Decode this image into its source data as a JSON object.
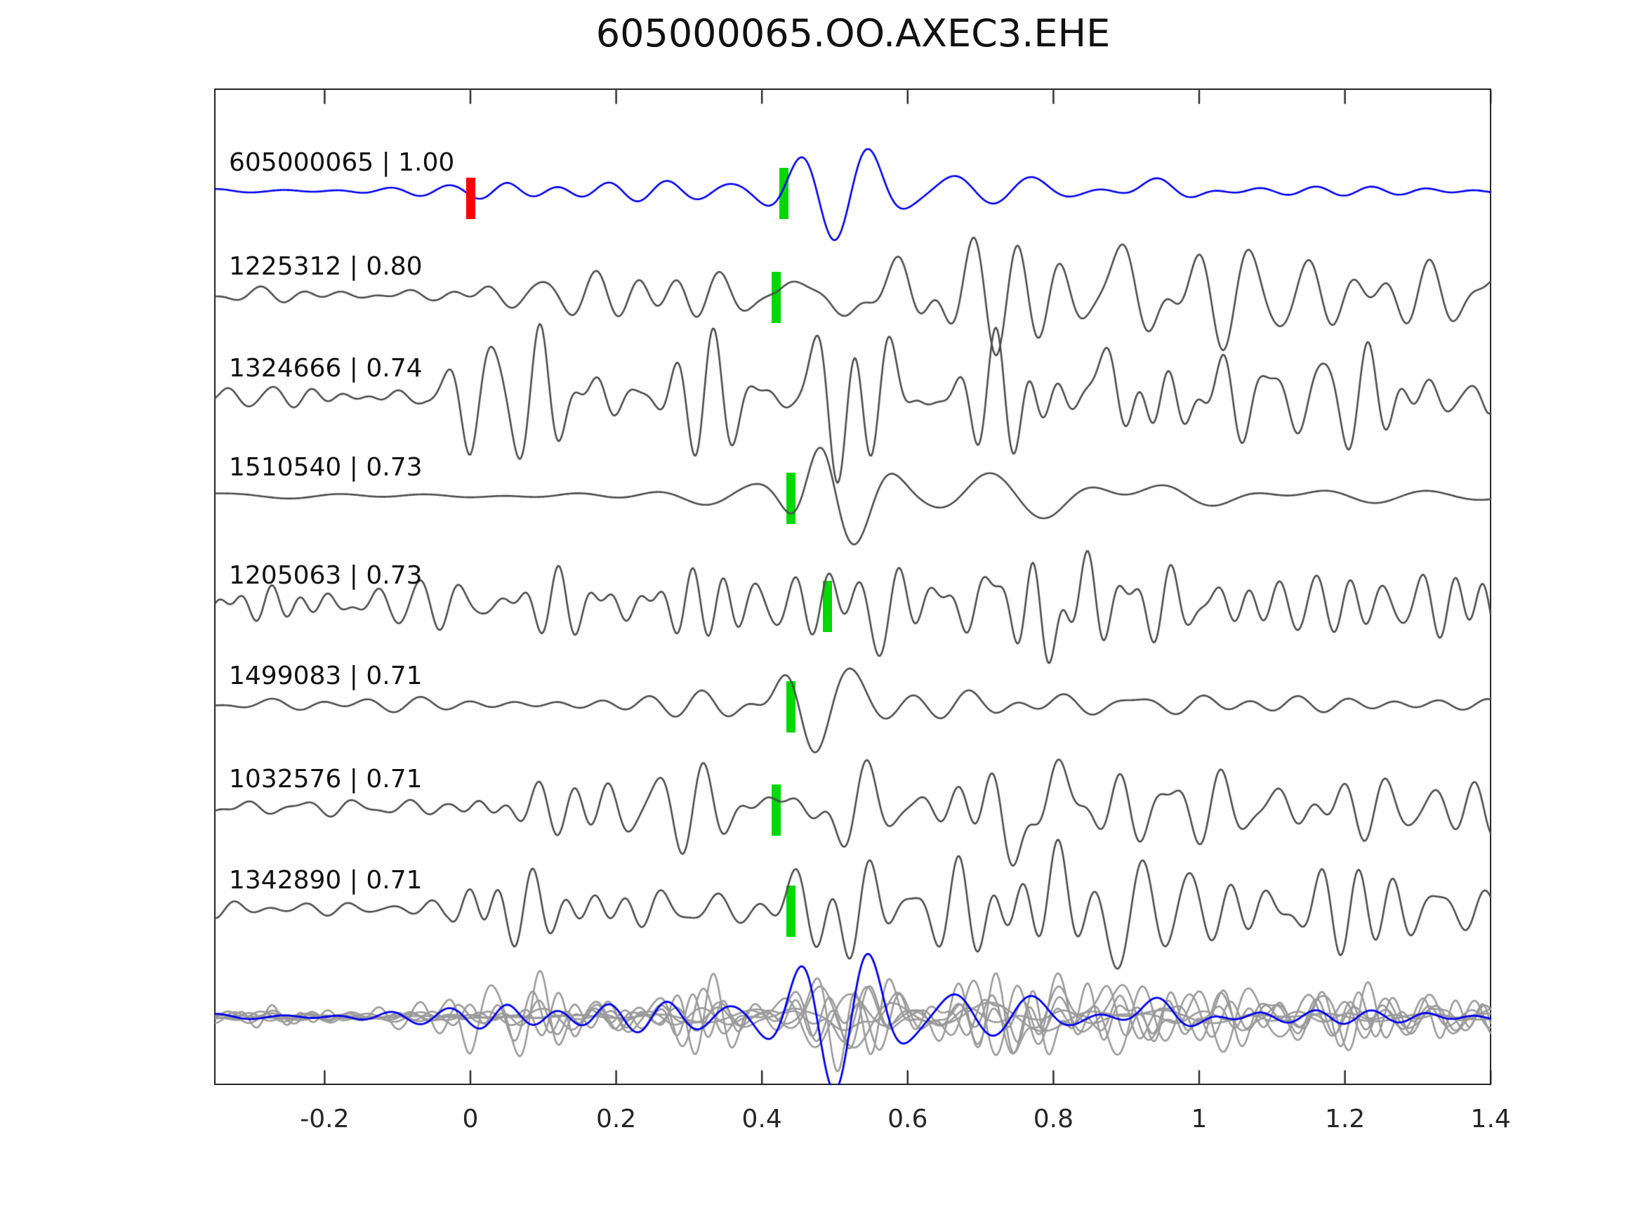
{
  "title": "605000065.OO.AXEC3.EHE",
  "chart_data": {
    "type": "line",
    "subtype": "seismic-waveform-correlation-stack",
    "title": "605000065.OO.AXEC3.EHE",
    "xlabel": "",
    "ylabel": "",
    "xlim": [
      -0.35,
      1.4
    ],
    "grid": false,
    "legend": "none",
    "colors": {
      "template_trace": "#0000f0",
      "detection_trace": "#4d4d4d",
      "overlay_trace": "#9a9a9a",
      "pick_marker": "#00d900",
      "origin_marker": "#ff0000",
      "axis": "#262626",
      "text": "#111111"
    },
    "x_ticks": [
      {
        "value": -0.2,
        "label": "-0.2"
      },
      {
        "value": 0,
        "label": "0"
      },
      {
        "value": 0.2,
        "label": "0.2"
      },
      {
        "value": 0.4,
        "label": "0.4"
      },
      {
        "value": 0.6,
        "label": "0.6"
      },
      {
        "value": 0.8,
        "label": "0.8"
      },
      {
        "value": 1,
        "label": "1"
      },
      {
        "value": 1.2,
        "label": "1.2"
      },
      {
        "value": 1.4,
        "label": "1.4"
      }
    ],
    "traces": [
      {
        "id": "605000065",
        "cc": "1.00",
        "label": "605000065 | 1.00",
        "role": "template",
        "color_key": "template_trace",
        "pick_time": 0.43,
        "origin_time": 0,
        "synth": {
          "seed": 11,
          "fmin": 9,
          "fmax": 18,
          "env": [
            [
              -0.35,
              2
            ],
            [
              -0.02,
              2.5
            ],
            [
              0.05,
              4.5
            ],
            [
              0.3,
              4.5
            ],
            [
              0.42,
              5
            ],
            [
              0.6,
              7
            ],
            [
              0.95,
              8
            ],
            [
              1.1,
              4
            ],
            [
              1.4,
              3
            ]
          ],
          "wavelets": [
            [
              0.497,
              -62,
              10.5,
              0.085
            ],
            [
              0.55,
              14,
              9,
              0.06
            ],
            [
              0.655,
              14,
              8,
              0.05
            ],
            [
              0.78,
              12,
              7,
              0.05
            ],
            [
              0.93,
              16,
              7,
              0.06
            ]
          ]
        }
      },
      {
        "id": "1225312",
        "cc": "0.80",
        "label": "1225312 | 0.80",
        "role": "detection",
        "color_key": "detection_trace",
        "pick_time": 0.42,
        "origin_time": null,
        "synth": {
          "seed": 22,
          "fmin": 10,
          "fmax": 22,
          "env": [
            [
              -0.35,
              5
            ],
            [
              -0.05,
              6
            ],
            [
              0.02,
              12
            ],
            [
              0.3,
              14
            ],
            [
              0.42,
              8
            ],
            [
              0.5,
              15
            ],
            [
              0.6,
              30
            ],
            [
              0.75,
              35
            ],
            [
              0.95,
              38
            ],
            [
              1.1,
              26
            ],
            [
              1.4,
              16
            ]
          ],
          "wavelets": [
            [
              0.51,
              -55,
              9.5,
              0.08
            ],
            [
              0.88,
              28,
              6.5,
              0.07
            ]
          ]
        }
      },
      {
        "id": "1324666",
        "cc": "0.74",
        "label": "1324666 | 0.74",
        "role": "detection",
        "color_key": "detection_trace",
        "pick_time": null,
        "origin_time": null,
        "synth": {
          "seed": 33,
          "fmin": 13,
          "fmax": 26,
          "env": [
            [
              -0.35,
              6
            ],
            [
              -0.06,
              7
            ],
            [
              0,
              30
            ],
            [
              0.1,
              38
            ],
            [
              0.25,
              32
            ],
            [
              0.4,
              36
            ],
            [
              0.55,
              40
            ],
            [
              0.75,
              45
            ],
            [
              0.95,
              48
            ],
            [
              1.1,
              32
            ],
            [
              1.3,
              26
            ],
            [
              1.4,
              30
            ]
          ],
          "wavelets": [
            [
              0.52,
              -45,
              8,
              0.1
            ],
            [
              0.86,
              30,
              6,
              0.1
            ]
          ]
        }
      },
      {
        "id": "1510540",
        "cc": "0.73",
        "label": "1510540 | 0.73",
        "role": "detection",
        "color_key": "detection_trace",
        "pick_time": 0.44,
        "origin_time": null,
        "synth": {
          "seed": 44,
          "fmin": 4,
          "fmax": 9,
          "env": [
            [
              -0.35,
              2
            ],
            [
              -0.05,
              2.5
            ],
            [
              0.05,
              4
            ],
            [
              0.3,
              5
            ],
            [
              0.45,
              6
            ],
            [
              0.6,
              10
            ],
            [
              0.8,
              12
            ],
            [
              1,
              9
            ],
            [
              1.4,
              6
            ]
          ],
          "wavelets": [
            [
              0.478,
              58,
              10,
              0.045
            ],
            [
              0.531,
              -52,
              9,
              0.055
            ],
            [
              0.69,
              14,
              6,
              0.08
            ],
            [
              0.95,
              10,
              5,
              0.1
            ]
          ]
        }
      },
      {
        "id": "1205063",
        "cc": "0.73",
        "label": "1205063 | 0.73",
        "role": "detection",
        "color_key": "detection_trace",
        "pick_time": 0.49,
        "origin_time": null,
        "synth": {
          "seed": 55,
          "fmin": 14,
          "fmax": 30,
          "env": [
            [
              -0.35,
              16
            ],
            [
              0,
              18
            ],
            [
              0.2,
              20
            ],
            [
              0.35,
              22
            ],
            [
              0.5,
              24
            ],
            [
              0.65,
              26
            ],
            [
              0.77,
              40
            ],
            [
              0.9,
              28
            ],
            [
              1.1,
              24
            ],
            [
              1.4,
              22
            ]
          ],
          "wavelets": [
            [
              0.56,
              -30,
              9,
              0.07
            ],
            [
              0.79,
              -35,
              7,
              0.07
            ]
          ]
        }
      },
      {
        "id": "1499083",
        "cc": "0.71",
        "label": "1499083 | 0.71",
        "role": "detection",
        "color_key": "detection_trace",
        "pick_time": 0.44,
        "origin_time": null,
        "synth": {
          "seed": 66,
          "fmin": 8,
          "fmax": 16,
          "env": [
            [
              -0.35,
              4
            ],
            [
              0,
              5
            ],
            [
              0.25,
              7
            ],
            [
              0.4,
              9
            ],
            [
              0.55,
              10
            ],
            [
              0.75,
              9
            ],
            [
              1,
              7
            ],
            [
              1.4,
              5
            ]
          ],
          "wavelets": [
            [
              0.435,
              20,
              12,
              0.05
            ],
            [
              0.468,
              -60,
              10.5,
              0.065
            ],
            [
              0.53,
              18,
              8,
              0.06
            ]
          ]
        }
      },
      {
        "id": "1032576",
        "cc": "0.71",
        "label": "1032576 | 0.71",
        "role": "detection",
        "color_key": "detection_trace",
        "pick_time": 0.42,
        "origin_time": null,
        "synth": {
          "seed": 77,
          "fmin": 12,
          "fmax": 24,
          "env": [
            [
              -0.35,
              5
            ],
            [
              -0.03,
              6
            ],
            [
              0.03,
              24
            ],
            [
              0.18,
              28
            ],
            [
              0.32,
              20
            ],
            [
              0.45,
              14
            ],
            [
              0.6,
              18
            ],
            [
              0.75,
              34
            ],
            [
              0.85,
              30
            ],
            [
              1,
              22
            ],
            [
              1.2,
              18
            ],
            [
              1.4,
              16
            ]
          ],
          "wavelets": [
            [
              0.49,
              -40,
              9,
              0.07
            ],
            [
              0.755,
              -48,
              7,
              0.06
            ],
            [
              0.805,
              30,
              7,
              0.05
            ]
          ]
        }
      },
      {
        "id": "1342890",
        "cc": "0.71",
        "label": "1342890 | 0.71",
        "role": "detection",
        "color_key": "detection_trace",
        "pick_time": 0.44,
        "origin_time": null,
        "synth": {
          "seed": 88,
          "fmin": 12,
          "fmax": 24,
          "env": [
            [
              -0.35,
              5
            ],
            [
              -0.03,
              6
            ],
            [
              0.02,
              26
            ],
            [
              0.2,
              24
            ],
            [
              0.35,
              18
            ],
            [
              0.5,
              22
            ],
            [
              0.65,
              26
            ],
            [
              0.8,
              30
            ],
            [
              0.95,
              30
            ],
            [
              1.15,
              24
            ],
            [
              1.4,
              18
            ]
          ],
          "wavelets": [
            [
              0.5,
              -50,
              9,
              0.07
            ],
            [
              0.8,
              35,
              7,
              0.06
            ],
            [
              0.88,
              -30,
              7,
              0.06
            ]
          ]
        }
      }
    ],
    "overlay_row": {
      "description": "all traces overlaid, template in blue on top",
      "gray_scale": 1.15,
      "blue_scale": 1.5
    }
  }
}
